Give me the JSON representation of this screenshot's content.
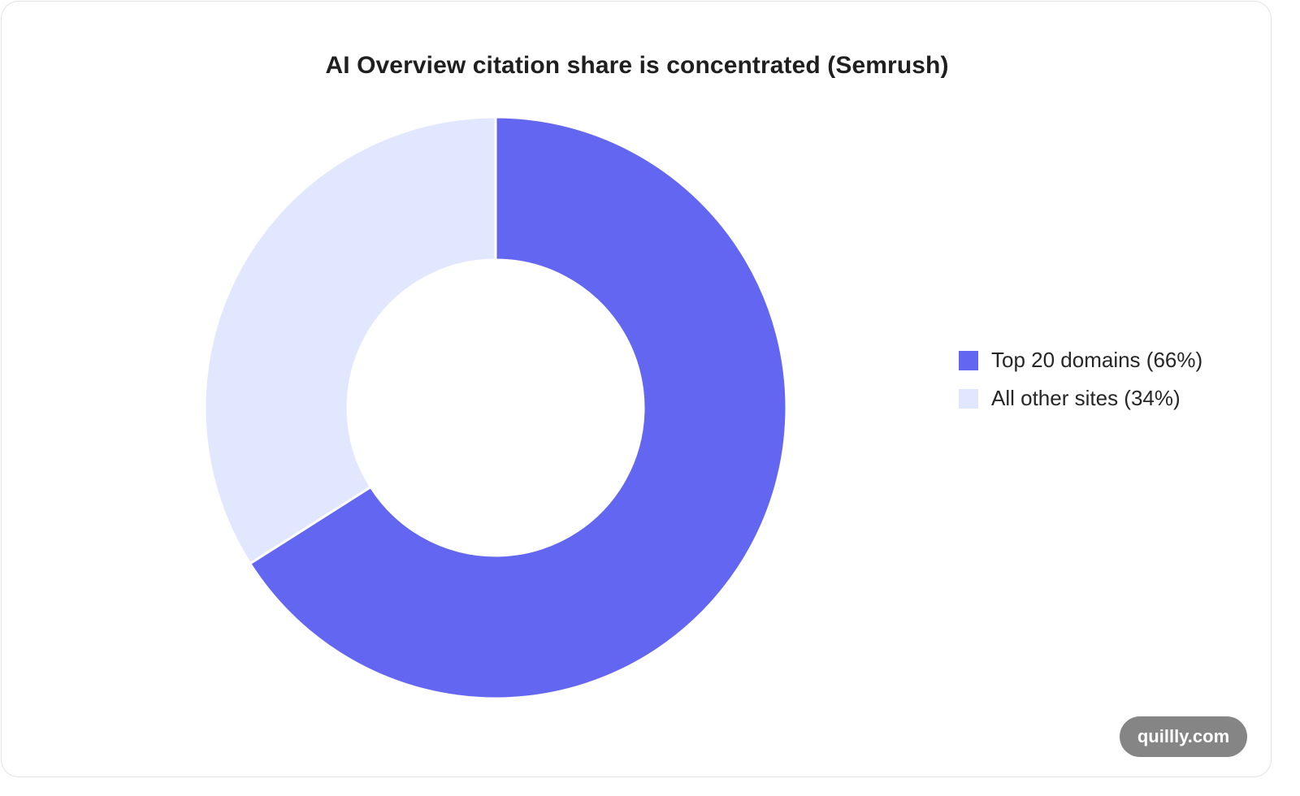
{
  "chart_data": {
    "type": "pie",
    "title": "AI Overview citation share is concentrated (Semrush)",
    "donut": true,
    "legend_position": "right",
    "slices": [
      {
        "label": "Top 20 domains (66%)",
        "value": 66,
        "color": "#6366f1"
      },
      {
        "label": "All other sites (34%)",
        "value": 34,
        "color": "#e0e7ff"
      }
    ]
  },
  "watermark": {
    "text": "quillly.com"
  }
}
